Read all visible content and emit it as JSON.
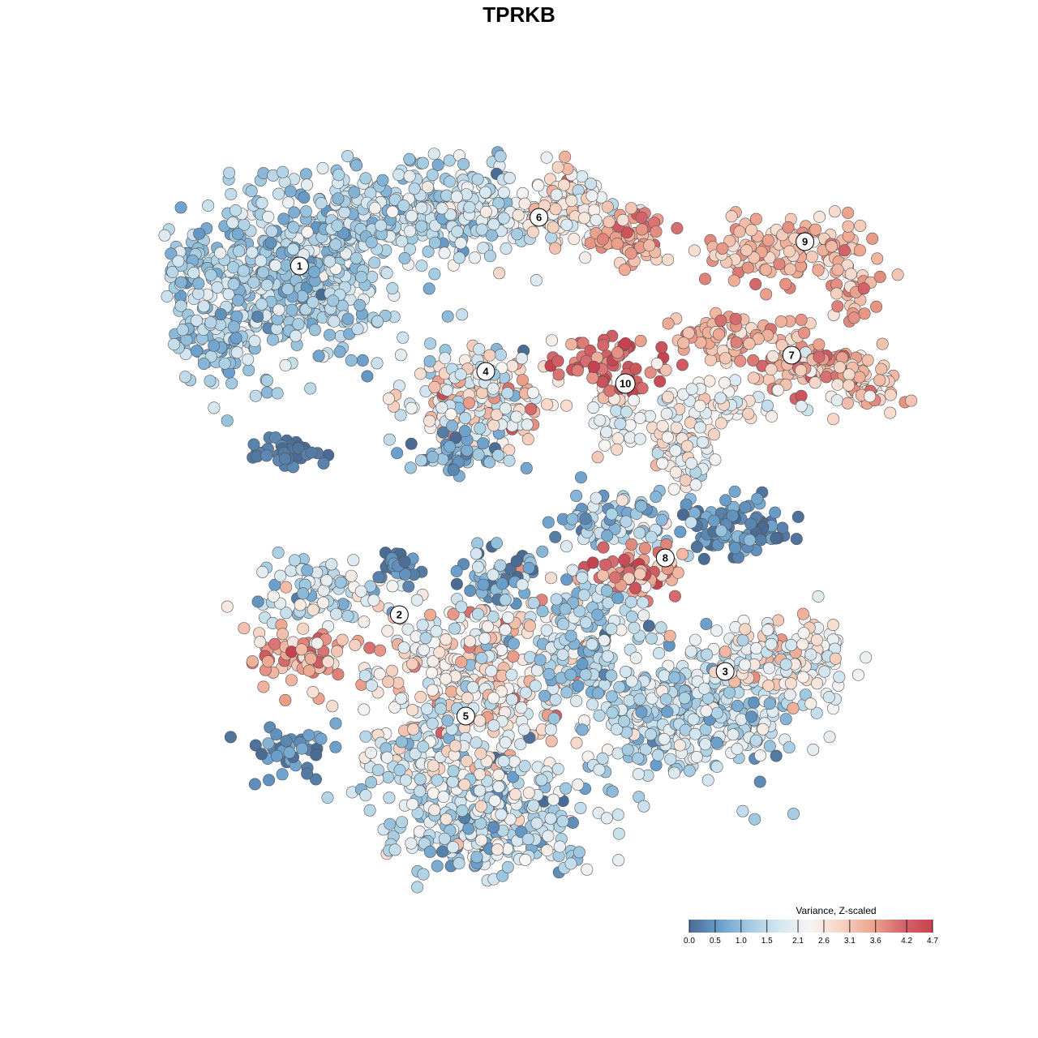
{
  "chart_data": {
    "type": "scatter",
    "title": "TPRKB",
    "xlabel": "",
    "ylabel": "",
    "grid": false,
    "legend_position": "bottom-right",
    "legend": {
      "title": "Variance, Z-scaled",
      "ticks": [
        "0.0",
        "0.5",
        "1.0",
        "1.5",
        "2.1",
        "2.6",
        "3.1",
        "3.6",
        "4.2",
        "4.7"
      ],
      "range": [
        0.0,
        4.7
      ],
      "colors": [
        "#4a6c94",
        "#6a9fcc",
        "#a4cce2",
        "#d6e7f1",
        "#f7f4f2",
        "#f7d3c3",
        "#eea68f",
        "#d5676b",
        "#c6424e"
      ]
    },
    "clusters": [
      {
        "label": "1",
        "x": -6.6,
        "y": 6.0
      },
      {
        "label": "2",
        "x": -3.6,
        "y": -2.6
      },
      {
        "label": "3",
        "x": 6.2,
        "y": -4.0
      },
      {
        "label": "4",
        "x": -1.0,
        "y": 3.4
      },
      {
        "label": "5",
        "x": -1.6,
        "y": -5.1
      },
      {
        "label": "6",
        "x": 0.6,
        "y": 7.2
      },
      {
        "label": "7",
        "x": 8.2,
        "y": 3.8
      },
      {
        "label": "8",
        "x": 4.4,
        "y": -1.2
      },
      {
        "label": "9",
        "x": 8.6,
        "y": 6.6
      },
      {
        "label": "10",
        "x": 3.2,
        "y": 3.1
      }
    ]
  }
}
